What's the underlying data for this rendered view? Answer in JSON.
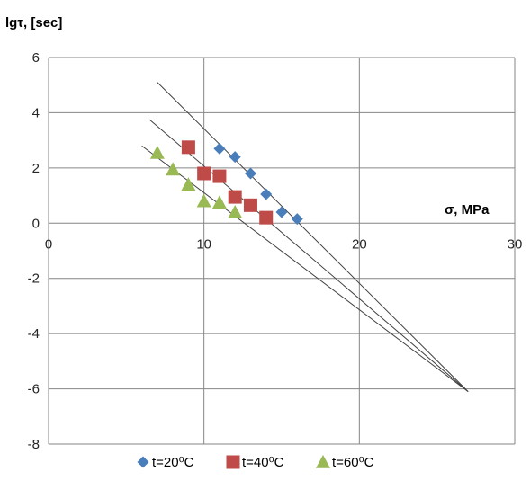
{
  "chart_data": {
    "type": "scatter",
    "title": "",
    "xlabel": "σ, MPa",
    "ylabel": "lgτ, [sec]",
    "xlim": [
      0,
      30
    ],
    "ylim": [
      -8,
      6
    ],
    "xticks": [
      0,
      10,
      20,
      30
    ],
    "yticks": [
      -8,
      -6,
      -4,
      -2,
      0,
      2,
      4,
      6
    ],
    "grid": "vertical and horizontal",
    "legend_position": "bottom",
    "series": [
      {
        "name": "t=20⁰C",
        "marker": "diamond",
        "color": "#4a7ebb",
        "points": [
          [
            11,
            2.7
          ],
          [
            12,
            2.4
          ],
          [
            13,
            1.8
          ],
          [
            14,
            1.05
          ],
          [
            15,
            0.4
          ],
          [
            16,
            0.15
          ]
        ]
      },
      {
        "name": "t=40⁰C",
        "marker": "square",
        "color": "#be4b48",
        "points": [
          [
            9,
            2.75
          ],
          [
            10,
            1.8
          ],
          [
            11,
            1.7
          ],
          [
            12,
            0.95
          ],
          [
            13,
            0.65
          ],
          [
            14,
            0.2
          ]
        ]
      },
      {
        "name": "t=60⁰C",
        "marker": "triangle",
        "color": "#98b954",
        "points": [
          [
            7,
            2.55
          ],
          [
            8,
            1.95
          ],
          [
            9,
            1.4
          ],
          [
            10,
            0.8
          ],
          [
            11,
            0.75
          ],
          [
            12,
            0.4
          ]
        ]
      }
    ],
    "trend_lines": [
      {
        "from": [
          7,
          5.1
        ],
        "to": [
          27,
          -6.1
        ]
      },
      {
        "from": [
          6.5,
          3.75
        ],
        "to": [
          27,
          -6.1
        ]
      },
      {
        "from": [
          6,
          2.8
        ],
        "to": [
          27,
          -6.1
        ]
      }
    ],
    "colors": {
      "grid": "#868686",
      "trend_line": "#404040",
      "axis": "#868686"
    }
  }
}
